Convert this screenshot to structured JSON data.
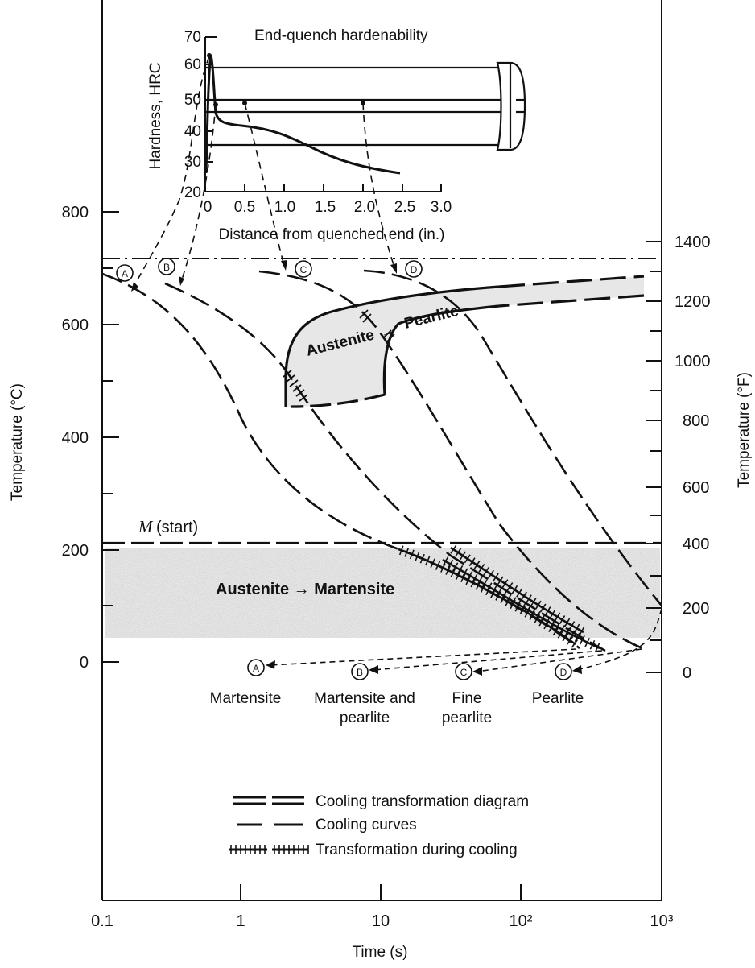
{
  "inset": {
    "title": "End-quench hardenability",
    "ylabel": "Hardness, HRC",
    "xlabel": "Distance from quenched end (in.)",
    "yticks": [
      "70",
      "60",
      "50",
      "40",
      "30",
      "20"
    ],
    "xticks": [
      "0",
      "0.5",
      "1.0",
      "1.5",
      "2.0",
      "2.5",
      "3.0"
    ]
  },
  "main": {
    "ylabel_left": "Temperature (°C)",
    "ylabel_right": "Temperature (°F)",
    "xlabel": "Time (s)",
    "yticks_c": [
      "800",
      "600",
      "400",
      "200",
      "0"
    ],
    "yticks_f": [
      "1400",
      "1200",
      "1000",
      "800",
      "600",
      "400",
      "200",
      "0"
    ],
    "xticks": [
      "0.1",
      "1",
      "10",
      "10²",
      "10³"
    ]
  },
  "curve_markers": [
    "A",
    "B",
    "C",
    "D"
  ],
  "labels": {
    "austenite_pearlite_a": "Austenite",
    "austenite_pearlite_b": "Pearlite",
    "m_start_sym": "M",
    "m_start_text": "(start)",
    "austenite_martensite": "Austenite → Martensite"
  },
  "products": [
    {
      "marker": "A",
      "line1": "Martensite",
      "line2": ""
    },
    {
      "marker": "B",
      "line1": "Martensite and",
      "line2": "pearlite"
    },
    {
      "marker": "C",
      "line1": "Fine",
      "line2": "pearlite"
    },
    {
      "marker": "D",
      "line1": "Pearlite",
      "line2": ""
    }
  ],
  "legend": [
    {
      "style": "double-dash",
      "label": "Cooling transformation diagram"
    },
    {
      "style": "dash",
      "label": "Cooling curves"
    },
    {
      "style": "hatched",
      "label": "Transformation during cooling"
    }
  ],
  "colors": {
    "ink": "#111111",
    "shade": "#c8c8c8"
  }
}
